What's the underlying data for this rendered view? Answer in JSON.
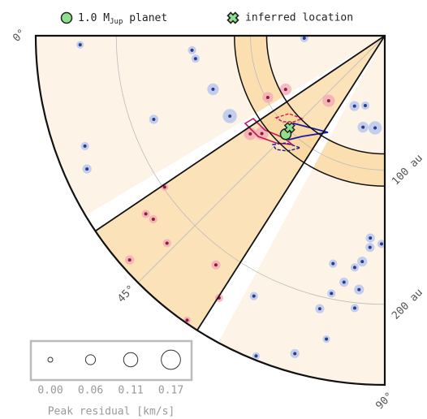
{
  "chart_data": {
    "type": "polar-scatter",
    "rlim": [
      0,
      260
    ],
    "thetalim": [
      0,
      90
    ],
    "rticks": [
      {
        "value": 100,
        "label": "100 au"
      },
      {
        "value": 200,
        "label": "200 au"
      }
    ],
    "thetaticks": [
      {
        "value": 0,
        "label": "0°"
      },
      {
        "value": 45,
        "label": "45°"
      },
      {
        "value": 90,
        "label": "90°"
      }
    ],
    "grid": true,
    "ring": [
      88,
      112
    ],
    "wedge": [
      34,
      57.5
    ],
    "gaps": [
      [
        31,
        34
      ],
      [
        57.5,
        61.5
      ]
    ],
    "series": [
      {
        "color": "#2b3a8c",
        "halo": "#a9bdf0",
        "theta": [
          1.7,
          4.3,
          6.9,
          17.3,
          27.4,
          19.9,
          20.2,
          24.1,
          66.7,
          74.4,
          84,
          76.6,
          1.7,
          85.9,
          86,
          89.1,
          84.3,
          77.2,
          82.6,
          80.6,
          84.2,
          78.3,
          83.7,
          76.6,
          63.3,
          79.1,
          74.2,
          68.1
        ],
        "r": [
          227,
          144,
          142,
          134,
          130,
          183,
          238,
          243,
          57,
          54,
          69,
          70,
          60,
          151,
          158,
          155,
          169,
          174,
          174,
          186,
          190,
          196,
          204,
          209,
          217,
          230,
          246,
          257
        ],
        "residual": [
          0.03,
          0.04,
          0.04,
          0.08,
          0.11,
          0.05,
          0.04,
          0.05,
          0.06,
          0.04,
          0.1,
          0.07,
          0.04,
          0.05,
          0.05,
          0.04,
          0.06,
          0.04,
          0.04,
          0.05,
          0.06,
          0.04,
          0.04,
          0.05,
          0.04,
          0.03,
          0.05,
          0.03
        ]
      },
      {
        "color": "#8c1c40",
        "halo": "#f2a3b5",
        "theta": [
          28.4,
          27.8,
          49.2,
          38.5,
          34.5,
          36.7,
          38.4,
          43.6,
          41.3,
          53.6,
          57.7,
          55.2,
          36.1
        ],
        "r": [
          84,
          98.5,
          64,
          117,
          199,
          222,
          220,
          224,
          253,
          212,
          231,
          258,
          124
        ],
        "residual": [
          0.08,
          0.07,
          0.09,
          0.1,
          0.03,
          0.04,
          0.04,
          0.04,
          0.05,
          0.05,
          0.04,
          0.03,
          0.09
        ]
      }
    ],
    "planet": {
      "theta": 44.8,
      "r": 104,
      "color": "#8ee08e"
    },
    "inferred": {
      "theta": 44,
      "r": 98.5,
      "color": "#8ee08e"
    },
    "legend": [
      {
        "label": "1.0 M",
        "sub": "Jup",
        "suffix": " planet"
      },
      {
        "label": "inferred location"
      }
    ],
    "size_legend": {
      "values": [
        0,
        0.06,
        0.11,
        0.17
      ],
      "value_labels": [
        "0.00",
        "0.06",
        "0.11",
        "0.17"
      ],
      "title": "Peak residual [km/s]"
    }
  }
}
